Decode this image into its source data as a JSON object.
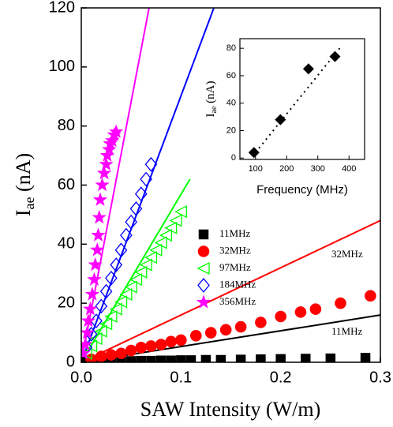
{
  "chart_data": {
    "type": "scatter",
    "xlabel": "SAW Intensity (W/m)",
    "ylabel": [
      "I",
      "ae",
      " (nA)"
    ],
    "xlim": [
      0,
      0.3
    ],
    "ylim": [
      0,
      120
    ],
    "xticks": [
      {
        "value": 0,
        "label": "0.0"
      },
      0.1,
      0.2,
      0.3
    ],
    "yticks": [
      0,
      20,
      40,
      60,
      80,
      100,
      120
    ],
    "series": [
      {
        "name": "11MHz",
        "color": "#000000",
        "marker": "square",
        "filled": true,
        "x": [
          0.005,
          0.01,
          0.015,
          0.02,
          0.03,
          0.04,
          0.05,
          0.06,
          0.07,
          0.08,
          0.09,
          0.1,
          0.11,
          0.125,
          0.14,
          0.16,
          0.18,
          0.2,
          0.225,
          0.25,
          0.285
        ],
        "values": [
          0.1,
          0.2,
          0.2,
          0.3,
          0.3,
          0.4,
          0.4,
          0.5,
          0.5,
          0.6,
          0.6,
          0.7,
          0.7,
          0.8,
          0.8,
          0.9,
          1,
          1.1,
          1.2,
          1.3,
          1.5
        ]
      },
      {
        "name": "32MHz",
        "color": "#ff0000",
        "marker": "circle",
        "filled": true,
        "x": [
          0.01,
          0.02,
          0.03,
          0.04,
          0.05,
          0.06,
          0.07,
          0.08,
          0.09,
          0.1,
          0.115,
          0.13,
          0.145,
          0.16,
          0.18,
          0.2,
          0.22,
          0.235,
          0.26,
          0.29
        ],
        "values": [
          1,
          2,
          2.5,
          3,
          4,
          5,
          5.5,
          6,
          7,
          7.5,
          9,
          10,
          11,
          12,
          13.5,
          15.5,
          17,
          18,
          20,
          22.5
        ]
      },
      {
        "name": "97MHz",
        "color": "#00ff00",
        "marker": "triangle",
        "filled": false,
        "x": [
          0.005,
          0.01,
          0.015,
          0.02,
          0.025,
          0.03,
          0.035,
          0.04,
          0.045,
          0.05,
          0.055,
          0.06,
          0.065,
          0.07,
          0.075,
          0.08,
          0.085,
          0.09,
          0.095,
          0.1
        ],
        "values": [
          3,
          5.5,
          8,
          10.5,
          13,
          15.5,
          18,
          20.5,
          23,
          25.5,
          28,
          30.5,
          33,
          35.5,
          38,
          40.5,
          43,
          45.5,
          48,
          51
        ]
      },
      {
        "name": "184MHz",
        "color": "#0000ff",
        "marker": "diamond",
        "filled": false,
        "x": [
          0.005,
          0.01,
          0.015,
          0.02,
          0.025,
          0.03,
          0.035,
          0.04,
          0.045,
          0.05,
          0.055,
          0.06,
          0.065,
          0.07
        ],
        "values": [
          5,
          9.5,
          14,
          19,
          24,
          28.5,
          33,
          38,
          43,
          47.5,
          52,
          57,
          62,
          67
        ]
      },
      {
        "name": "356MHz",
        "color": "#ff00ff",
        "marker": "star",
        "filled": true,
        "x": [
          0.002,
          0.004,
          0.006,
          0.007,
          0.009,
          0.011,
          0.013,
          0.014,
          0.016,
          0.017,
          0.018,
          0.019,
          0.021,
          0.023,
          0.025,
          0.026,
          0.028,
          0.029,
          0.031,
          0.033,
          0.035
        ],
        "values": [
          3,
          6,
          10,
          14,
          18,
          23,
          28,
          33,
          38,
          43,
          49,
          55,
          60,
          64,
          67,
          70,
          72,
          74,
          75,
          77,
          78
        ]
      }
    ],
    "fit_lines": [
      {
        "color": "#000000",
        "x": [
          0,
          0.3
        ],
        "values": [
          0,
          16
        ]
      },
      {
        "color": "#ff0000",
        "x": [
          0,
          0.3
        ],
        "values": [
          0,
          48
        ]
      },
      {
        "color": "#00ff00",
        "x": [
          0,
          0.109
        ],
        "values": [
          0,
          62
        ]
      },
      {
        "color": "#0000ff",
        "x": [
          0,
          0.133
        ],
        "values": [
          0,
          120
        ]
      },
      {
        "color": "#ff00ff",
        "x": [
          0,
          0.068
        ],
        "values": [
          0,
          120
        ]
      }
    ],
    "annotations": [
      "32MHz",
      "11MHz"
    ],
    "inset": {
      "type": "scatter",
      "xlabel": "Frequency (MHz)",
      "ylabel": [
        "I",
        "ae",
        " (nA)"
      ],
      "xlim": [
        50,
        450
      ],
      "ylim": [
        -1,
        87
      ],
      "xticks": [
        100,
        200,
        300,
        400
      ],
      "yticks": [
        0,
        20,
        40,
        60,
        80
      ],
      "color": "#000000",
      "x": [
        95,
        180,
        270,
        355
      ],
      "values": [
        4,
        28,
        65,
        74
      ],
      "fit_line": {
        "x": [
          100,
          370
        ],
        "values": [
          4,
          80
        ]
      }
    }
  }
}
